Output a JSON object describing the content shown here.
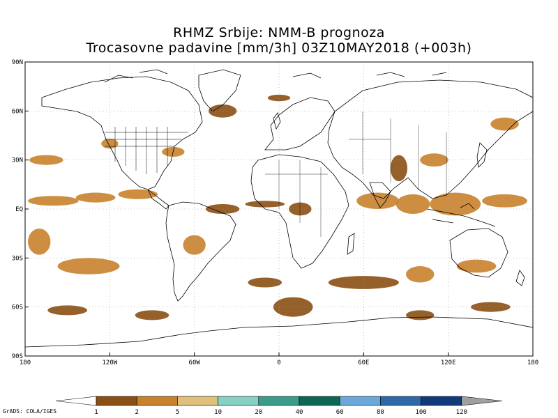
{
  "title_line1": "RHMZ Srbije: NMM-B prognoza",
  "title_line2": "Trocasovne padavine [mm/3h] 03Z10MAY2018 (+003h)",
  "credit": "GrADS: COLA/IGES",
  "map": {
    "projection": "lat-lon",
    "lon_range": [
      -180,
      180
    ],
    "lat_range": [
      -90,
      90
    ],
    "x_ticks": [
      {
        "lon": -180,
        "label": "180"
      },
      {
        "lon": -120,
        "label": "120W"
      },
      {
        "lon": -60,
        "label": "60W"
      },
      {
        "lon": 0,
        "label": "0"
      },
      {
        "lon": 60,
        "label": "60E"
      },
      {
        "lon": 120,
        "label": "120E"
      },
      {
        "lon": 180,
        "label": "180"
      }
    ],
    "y_ticks": [
      {
        "lat": 90,
        "label": "90N"
      },
      {
        "lat": 60,
        "label": "60N"
      },
      {
        "lat": 30,
        "label": "30N"
      },
      {
        "lat": 0,
        "label": "EQ"
      },
      {
        "lat": -30,
        "label": "30S"
      },
      {
        "lat": -60,
        "label": "60S"
      },
      {
        "lat": -90,
        "label": "90S"
      }
    ],
    "grid": true
  },
  "colorbar": {
    "levels": [
      "1",
      "2",
      "5",
      "10",
      "20",
      "40",
      "60",
      "80",
      "100",
      "120"
    ],
    "colors": [
      "#8b4f14",
      "#c8822c",
      "#e0c07a",
      "#86d2c2",
      "#3b9c8c",
      "#0b6652",
      "#6aa8dc",
      "#2e69a8",
      "#103a7a"
    ],
    "under_color": "#ffffff",
    "over_color": "#a0a0a0"
  },
  "precip_areas": [
    {
      "lon": -160,
      "lat": 5,
      "rx": 18,
      "ry": 3,
      "level": 1
    },
    {
      "lon": -130,
      "lat": 7,
      "rx": 14,
      "ry": 3,
      "level": 1
    },
    {
      "lon": -100,
      "lat": 9,
      "rx": 14,
      "ry": 3,
      "level": 1
    },
    {
      "lon": -40,
      "lat": 0,
      "rx": 12,
      "ry": 3,
      "level": 0
    },
    {
      "lon": -10,
      "lat": 3,
      "rx": 14,
      "ry": 2,
      "level": 0
    },
    {
      "lon": 15,
      "lat": 0,
      "rx": 8,
      "ry": 4,
      "level": 0
    },
    {
      "lon": 70,
      "lat": 5,
      "rx": 15,
      "ry": 5,
      "level": 1
    },
    {
      "lon": 95,
      "lat": 3,
      "rx": 12,
      "ry": 6,
      "level": 1
    },
    {
      "lon": 125,
      "lat": 3,
      "rx": 18,
      "ry": 7,
      "level": 1
    },
    {
      "lon": 160,
      "lat": 5,
      "rx": 16,
      "ry": 4,
      "level": 1
    },
    {
      "lon": 85,
      "lat": 25,
      "rx": 6,
      "ry": 8,
      "level": 0
    },
    {
      "lon": 110,
      "lat": 30,
      "rx": 10,
      "ry": 4,
      "level": 1
    },
    {
      "lon": -165,
      "lat": 30,
      "rx": 12,
      "ry": 3,
      "level": 1
    },
    {
      "lon": -120,
      "lat": 40,
      "rx": 6,
      "ry": 3,
      "level": 1
    },
    {
      "lon": -75,
      "lat": 35,
      "rx": 8,
      "ry": 3,
      "level": 1
    },
    {
      "lon": -40,
      "lat": 60,
      "rx": 10,
      "ry": 4,
      "level": 0
    },
    {
      "lon": 0,
      "lat": 68,
      "rx": 8,
      "ry": 2,
      "level": 0
    },
    {
      "lon": 160,
      "lat": 52,
      "rx": 10,
      "ry": 4,
      "level": 1
    },
    {
      "lon": -170,
      "lat": -20,
      "rx": 8,
      "ry": 8,
      "level": 1
    },
    {
      "lon": -135,
      "lat": -35,
      "rx": 22,
      "ry": 5,
      "level": 1
    },
    {
      "lon": -60,
      "lat": -22,
      "rx": 8,
      "ry": 6,
      "level": 1
    },
    {
      "lon": -10,
      "lat": -45,
      "rx": 12,
      "ry": 3,
      "level": 0
    },
    {
      "lon": 10,
      "lat": -60,
      "rx": 14,
      "ry": 6,
      "level": 0
    },
    {
      "lon": 60,
      "lat": -45,
      "rx": 25,
      "ry": 4,
      "level": 0
    },
    {
      "lon": 100,
      "lat": -40,
      "rx": 10,
      "ry": 5,
      "level": 1
    },
    {
      "lon": 140,
      "lat": -35,
      "rx": 14,
      "ry": 4,
      "level": 1
    },
    {
      "lon": 150,
      "lat": -60,
      "rx": 14,
      "ry": 3,
      "level": 0
    },
    {
      "lon": -150,
      "lat": -62,
      "rx": 14,
      "ry": 3,
      "level": 0
    },
    {
      "lon": -90,
      "lat": -65,
      "rx": 12,
      "ry": 3,
      "level": 0
    },
    {
      "lon": 100,
      "lat": -65,
      "rx": 10,
      "ry": 3,
      "level": 0
    }
  ]
}
